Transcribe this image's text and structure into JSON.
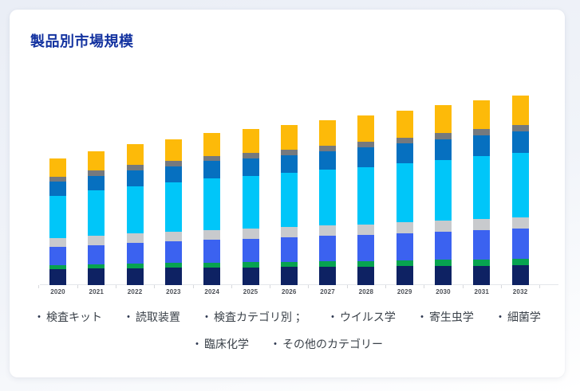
{
  "card": {
    "title": "製品別市場規模"
  },
  "chart_data": {
    "type": "bar",
    "stacked": true,
    "title": "製品別市場規模",
    "xlabel": "",
    "ylabel": "",
    "grid": false,
    "legend_position": "bottom",
    "categories": [
      "2020",
      "2021",
      "2022",
      "2023",
      "2024",
      "2025",
      "2026",
      "2027",
      "2028",
      "2029",
      "2030",
      "2031",
      "2032"
    ],
    "series": [
      {
        "name": "検査キット",
        "color": "#0e2263",
        "values": [
          20.0,
          20.6,
          21.3,
          21.7,
          22.2,
          22.4,
          22.7,
          23.0,
          23.3,
          23.6,
          24.1,
          24.4,
          24.8
        ]
      },
      {
        "name": "読取装置",
        "color": "#07a350",
        "values": [
          5.0,
          5.4,
          5.6,
          6.0,
          6.2,
          6.5,
          6.6,
          6.9,
          7.1,
          7.4,
          7.7,
          8.0,
          8.2
        ]
      },
      {
        "name": "検査カテゴリ別 ；",
        "color": "#3b62f0",
        "values": [
          22.9,
          24.5,
          26.0,
          27.2,
          28.7,
          29.6,
          30.6,
          31.8,
          32.9,
          34.1,
          35.5,
          36.6,
          37.7
        ]
      },
      {
        "name": "ウイルス学",
        "color": "#c8cacd",
        "values": [
          10.9,
          11.4,
          11.8,
          12.1,
          12.4,
          12.6,
          12.8,
          13.1,
          13.2,
          13.5,
          13.8,
          14.1,
          14.3
        ]
      },
      {
        "name": "寄生虫学",
        "color": "#00c6f9",
        "values": [
          53.7,
          56.7,
          59.8,
          61.8,
          64.5,
          66.2,
          67.9,
          70.0,
          72.0,
          74.1,
          76.4,
          78.5,
          80.6
        ]
      },
      {
        "name": "細菌学",
        "color": "#0670c0",
        "values": [
          17.9,
          18.9,
          20.0,
          20.7,
          21.6,
          22.2,
          22.9,
          23.6,
          24.2,
          24.9,
          25.9,
          26.5,
          27.2
        ]
      },
      {
        "name": "臨床化学",
        "color": "#75797e",
        "values": [
          6.0,
          6.2,
          6.5,
          6.6,
          6.8,
          6.9,
          7.0,
          7.1,
          7.2,
          7.4,
          7.6,
          7.8,
          7.9
        ]
      },
      {
        "name": "その他のカテゴリー",
        "color": "#fdba09",
        "values": [
          22.9,
          24.4,
          26.0,
          27.1,
          28.6,
          29.5,
          30.5,
          31.6,
          32.7,
          33.9,
          35.2,
          36.3,
          37.4
        ]
      }
    ],
    "axis_color": "#e4e6ea",
    "tick_color": "#d7d9dd",
    "x_tick_label_color": "#4b4f56"
  },
  "legend": {
    "bullet": "・",
    "items": [
      {
        "label": "検査キット"
      },
      {
        "label": "読取装置"
      },
      {
        "label": "検査カテゴリ別 ；"
      },
      {
        "label": "ウイルス学"
      },
      {
        "label": "寄生虫学"
      },
      {
        "label": "細菌学"
      },
      {
        "label": "臨床化学"
      },
      {
        "label": "その他のカテゴリー"
      }
    ]
  },
  "colors": {
    "title": "#1433a0",
    "card_background": "#ffffff",
    "page_background": "#eef1f8",
    "legend_text": "#3a4149"
  }
}
